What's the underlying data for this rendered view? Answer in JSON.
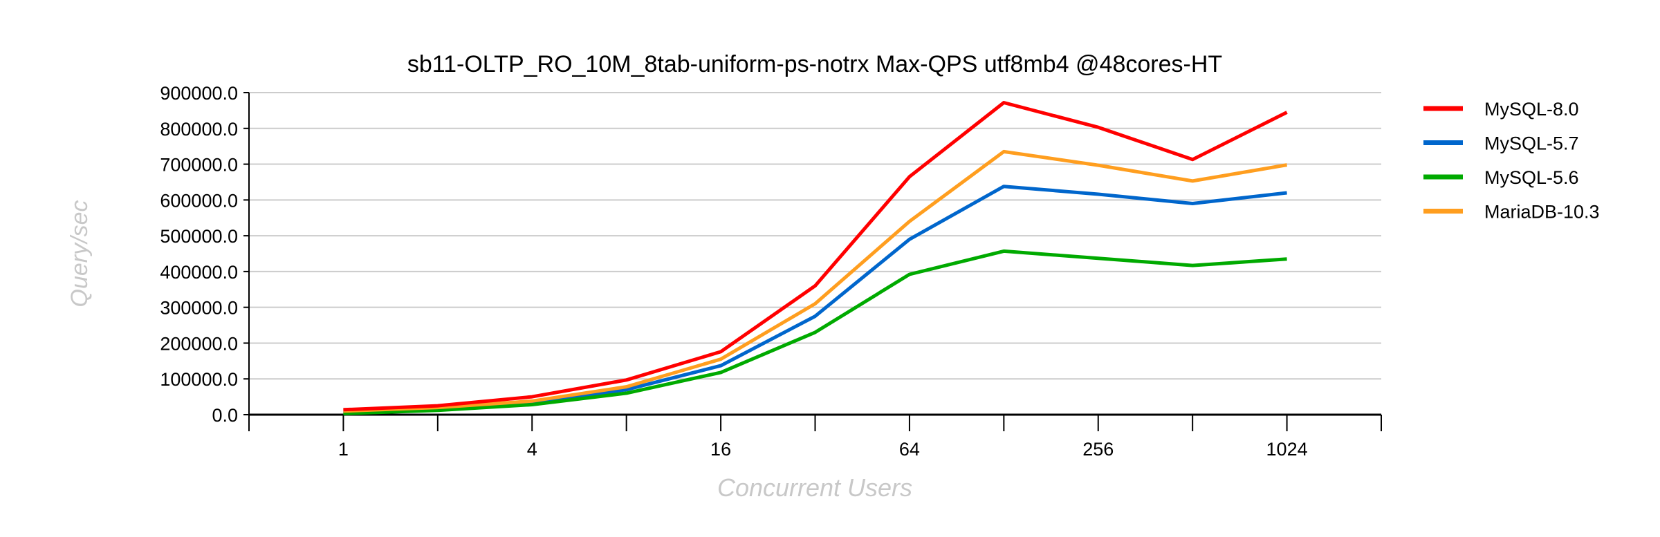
{
  "chart_data": {
    "type": "line",
    "title": "sb11-OLTP_RO_10M_8tab-uniform-ps-notrx Max-QPS utf8mb4 @48cores-HT",
    "xlabel": "Concurrent Users",
    "ylabel": "Query/sec",
    "x": [
      1,
      2,
      4,
      8,
      16,
      32,
      64,
      128,
      256,
      512,
      1024
    ],
    "x_tick_labels": [
      "1",
      "4",
      "16",
      "64",
      "256",
      "1024"
    ],
    "x_tick_values": [
      1,
      4,
      16,
      64,
      256,
      1024
    ],
    "x_scale": "log2",
    "ylim": [
      0,
      900000
    ],
    "y_ticks": [
      0,
      100000,
      200000,
      300000,
      400000,
      500000,
      600000,
      700000,
      800000,
      900000
    ],
    "y_tick_labels": [
      "0.0",
      "100000.0",
      "200000.0",
      "300000.0",
      "400000.0",
      "500000.0",
      "600000.0",
      "700000.0",
      "800000.0",
      "900000.0"
    ],
    "grid": true,
    "legend_position": "right",
    "series": [
      {
        "name": "MySQL-8.0",
        "color": "#ff0000",
        "values": [
          14000,
          25000,
          50000,
          97000,
          176000,
          360000,
          665000,
          872000,
          803000,
          713000,
          845000
        ]
      },
      {
        "name": "MySQL-5.7",
        "color": "#0066cc",
        "values": [
          5000,
          15000,
          33000,
          70000,
          137000,
          275000,
          490000,
          638000,
          616000,
          590000,
          620000
        ]
      },
      {
        "name": "MySQL-5.6",
        "color": "#00aa00",
        "values": [
          3000,
          12000,
          28000,
          60000,
          118000,
          230000,
          392000,
          457000,
          437000,
          417000,
          435000
        ]
      },
      {
        "name": "MariaDB-10.3",
        "color": "#ff9e1f",
        "values": [
          10000,
          20000,
          38000,
          78000,
          155000,
          310000,
          540000,
          735000,
          697000,
          653000,
          698000
        ]
      }
    ]
  }
}
